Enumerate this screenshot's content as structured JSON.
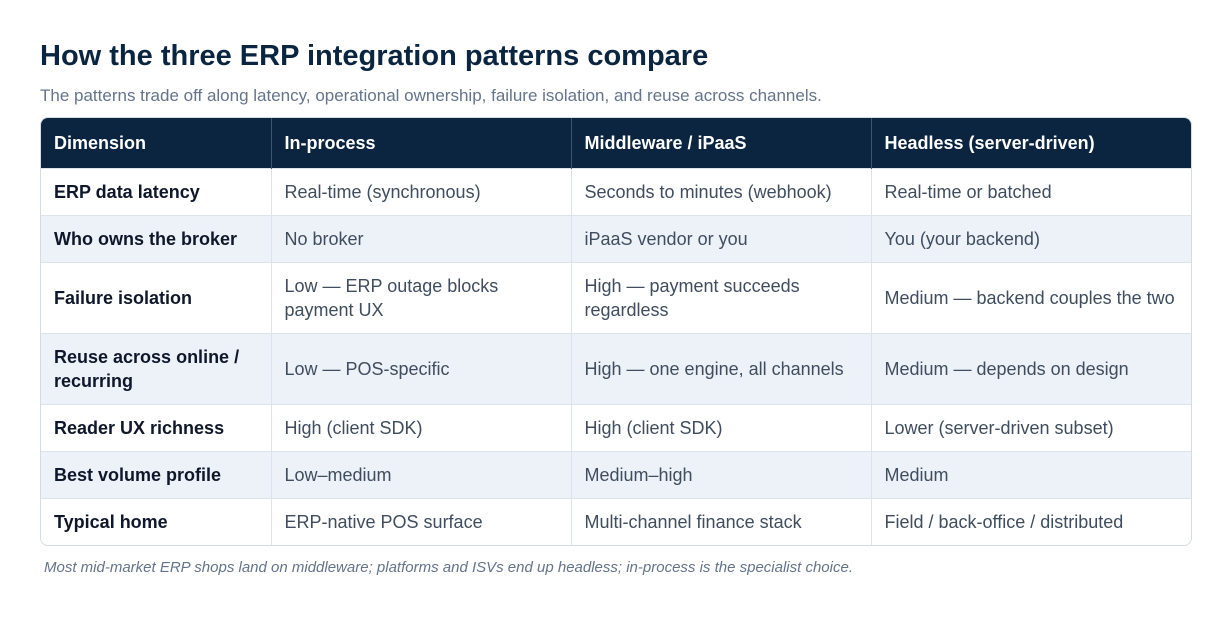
{
  "title": "How the three ERP integration patterns compare",
  "subtitle": "The patterns trade off along latency, operational ownership, failure isolation, and reuse across channels.",
  "table": {
    "headers": [
      "Dimension",
      "In-process",
      "Middleware / iPaaS",
      "Headless (server-driven)"
    ],
    "rows": [
      [
        "ERP data latency",
        "Real-time (synchronous)",
        "Seconds to minutes (webhook)",
        "Real-time or batched"
      ],
      [
        "Who owns the broker",
        "No broker",
        "iPaaS vendor or you",
        "You (your backend)"
      ],
      [
        "Failure isolation",
        "Low — ERP outage blocks payment UX",
        "High — payment succeeds regardless",
        "Medium — backend couples the two"
      ],
      [
        "Reuse across online / recurring",
        "Low — POS-specific",
        "High — one engine, all channels",
        "Medium — depends on design"
      ],
      [
        "Reader UX richness",
        "High (client SDK)",
        "High (client SDK)",
        "Lower (server-driven subset)"
      ],
      [
        "Best volume profile",
        "Low–medium",
        "Medium–high",
        "Medium"
      ],
      [
        "Typical home",
        "ERP-native POS surface",
        "Multi-channel finance stack",
        "Field / back-office / distributed"
      ]
    ]
  },
  "footnote": "Most mid-market ERP shops land on middleware; platforms and ISVs end up headless; in-process is the specialist choice.",
  "colors": {
    "header_bg": "#0b2540",
    "title": "#0b2540",
    "stripe": "#edf1f8",
    "muted_text": "#64748b"
  }
}
